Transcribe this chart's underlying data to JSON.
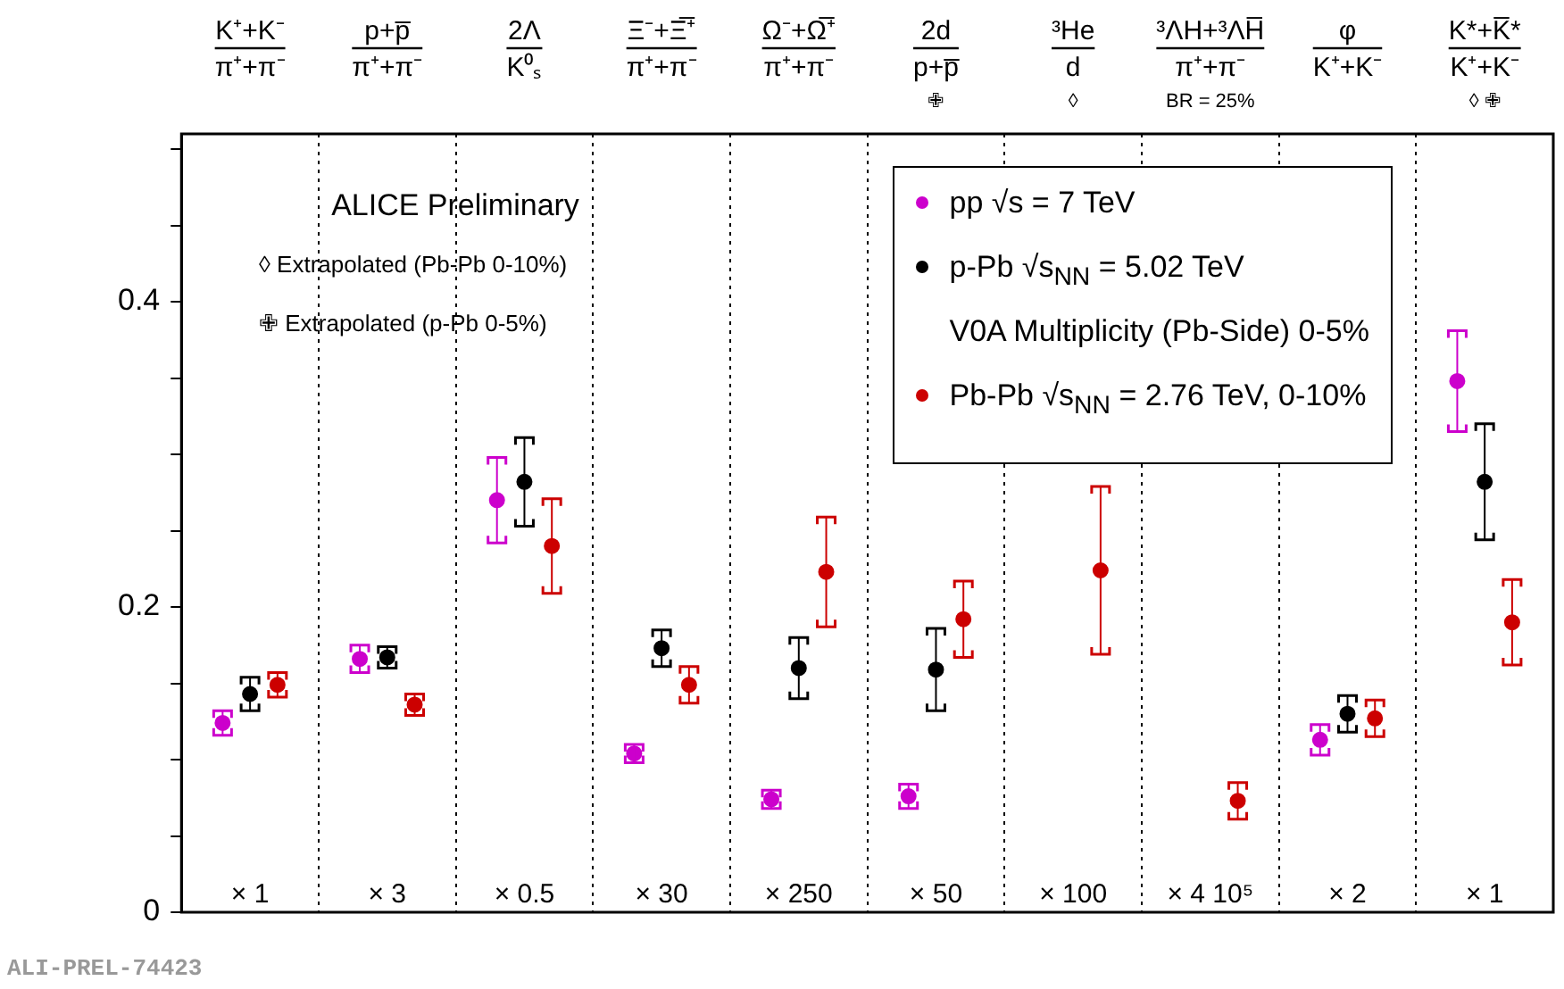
{
  "chart_data": {
    "type": "scatter",
    "categories": [
      "K⁺+K⁻ π⁺+π⁻",
      "p+p̅ π⁺+π⁻",
      "2Λ K⁰ₛ",
      "Ξ⁻+Ξ̅⁺ π⁺+π⁻",
      "Ω⁻+Ω̅⁺ π⁺+π⁻",
      "2d p+p̅ ✙",
      "³He d ◊",
      "³ΛH+³ΛH̅ π⁺+π⁻ BR = 25%",
      "φ K⁺+K⁻",
      "K*+K̅* K⁺+K⁻ ◊ ✙"
    ],
    "series": [
      {
        "name": "pp √s = 7 TeV",
        "color": "#cc00cc",
        "values": [
          0.124,
          0.166,
          0.27,
          0.104,
          0.074,
          0.076,
          null,
          null,
          0.113,
          0.348
        ],
        "errors": [
          0.008,
          0.009,
          0.028,
          0.006,
          0.006,
          0.008,
          null,
          null,
          0.01,
          0.033
        ]
      },
      {
        "name": "p-Pb √s$_{NN}$ = 5.02 TeV\nV0A Multiplicity (Pb-Side) 0-5%",
        "color": "#000000",
        "values": [
          0.143,
          0.167,
          0.282,
          0.173,
          0.16,
          0.159,
          null,
          null,
          0.13,
          0.282
        ],
        "errors": [
          0.011,
          0.007,
          0.029,
          0.012,
          0.02,
          0.027,
          null,
          null,
          0.012,
          0.038
        ]
      },
      {
        "name": "Pb-Pb √s$_{NN}$ = 2.76 TeV, 0-10%",
        "color": "#cc0000",
        "values": [
          0.149,
          0.136,
          0.24,
          0.149,
          0.223,
          0.192,
          0.224,
          0.073,
          0.127,
          0.19
        ],
        "errors": [
          0.008,
          0.007,
          0.031,
          0.012,
          0.036,
          0.025,
          0.055,
          0.012,
          0.012,
          0.028
        ]
      }
    ],
    "ylim": [
      0,
      0.51
    ],
    "yticks": [
      0,
      {
        "value": 0.05,
        "label": null
      },
      {
        "value": 0.1,
        "label": null
      },
      {
        "value": 0.15,
        "label": null
      },
      0.2,
      {
        "value": 0.25,
        "label": null
      },
      {
        "value": 0.3,
        "label": null
      },
      {
        "value": 0.35,
        "label": null
      },
      0.4,
      {
        "value": 0.45,
        "label": null
      },
      {
        "value": 0.5,
        "label": null
      }
    ],
    "grid": "x",
    "legend": "top right",
    "marker": "circle",
    "annotations": [
      "ALICE Preliminary",
      "◊ Extrapolated (Pb-Pb 0-10%)",
      "✙ Extrapolated (p-Pb 0-5%)",
      "× 1",
      "× 3",
      "× 0.5",
      "× 30",
      "× 250",
      "× 50",
      "× 100",
      "× 4 10⁵",
      "× 2",
      "× 1",
      "ALI-PREL-74423"
    ]
  }
}
